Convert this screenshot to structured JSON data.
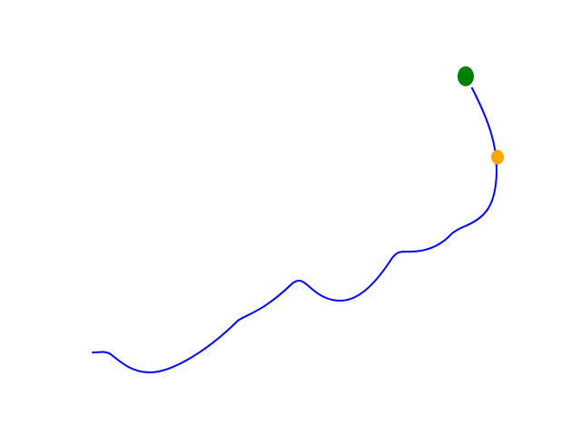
{
  "background_color": "#ffffff",
  "path": {
    "color": "#0000ff"
  },
  "markers": {
    "goal": {
      "color": "#008000"
    },
    "current": {
      "color": "#ffa500"
    }
  }
}
